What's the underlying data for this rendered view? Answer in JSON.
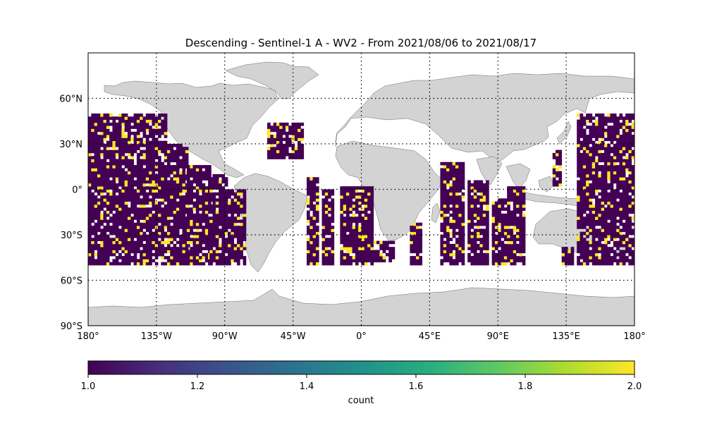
{
  "title": "Descending - Sentinel-1 A - WV2 - From 2021/08/06 to 2021/08/17",
  "map": {
    "projection": "PlateCarree",
    "lon_range": [
      -180,
      180
    ],
    "lat_range": [
      -90,
      90
    ],
    "gridlines": "dotted",
    "land_color": "#d3d3d3",
    "lon_ticks": [
      {
        "value": -180,
        "label": "180°"
      },
      {
        "value": -135,
        "label": "135°W"
      },
      {
        "value": -90,
        "label": "90°W"
      },
      {
        "value": -45,
        "label": "45°W"
      },
      {
        "value": 0,
        "label": "0°"
      },
      {
        "value": 45,
        "label": "45°E"
      },
      {
        "value": 90,
        "label": "90°E"
      },
      {
        "value": 135,
        "label": "135°E"
      },
      {
        "value": 180,
        "label": "180°"
      }
    ],
    "lat_ticks": [
      {
        "value": 60,
        "label": "60°N"
      },
      {
        "value": 30,
        "label": "30°N"
      },
      {
        "value": 0,
        "label": "0°"
      },
      {
        "value": -30,
        "label": "30°S"
      },
      {
        "value": -60,
        "label": "60°S"
      },
      {
        "value": -90,
        "label": "90°S"
      }
    ]
  },
  "chart_data": {
    "type": "heatmap",
    "cell_size_deg": 2,
    "lat_extent": [
      -50,
      50
    ],
    "value_range": [
      1,
      2
    ],
    "colormap": "viridis",
    "swaths": [
      {
        "lon": [
          -180,
          -128
        ],
        "lat": [
          -50,
          50
        ]
      },
      {
        "lon": [
          -128,
          -115
        ],
        "lat": [
          -50,
          30
        ]
      },
      {
        "lon": [
          -115,
          -100
        ],
        "lat": [
          -50,
          15
        ]
      },
      {
        "lon": [
          -100,
          -88
        ],
        "lat": [
          -50,
          10
        ]
      },
      {
        "lon": [
          -88,
          -76
        ],
        "lat": [
          -50,
          0
        ]
      },
      {
        "lon": [
          -62,
          -38
        ],
        "lat": [
          20,
          44
        ]
      },
      {
        "lon": [
          -36,
          -28
        ],
        "lat": [
          -50,
          8
        ]
      },
      {
        "lon": [
          -26,
          -18
        ],
        "lat": [
          -50,
          0
        ]
      },
      {
        "lon": [
          -14,
          8
        ],
        "lat": [
          -50,
          2
        ]
      },
      {
        "lon": [
          8,
          22
        ],
        "lat": [
          -48,
          -34
        ]
      },
      {
        "lon": [
          32,
          40
        ],
        "lat": [
          -50,
          -22
        ]
      },
      {
        "lon": [
          52,
          68
        ],
        "lat": [
          -50,
          18
        ]
      },
      {
        "lon": [
          70,
          84
        ],
        "lat": [
          -50,
          6
        ]
      },
      {
        "lon": [
          86,
          96
        ],
        "lat": [
          -50,
          -6
        ]
      },
      {
        "lon": [
          96,
          108
        ],
        "lat": [
          -50,
          2
        ]
      },
      {
        "lon": [
          132,
          140
        ],
        "lat": [
          -50,
          -38
        ]
      },
      {
        "lon": [
          126,
          132
        ],
        "lat": [
          2,
          25
        ]
      },
      {
        "lon": [
          142,
          180
        ],
        "lat": [
          -50,
          50
        ]
      }
    ],
    "colorbar": {
      "label": "count",
      "ticks": [
        "1.0",
        "1.2",
        "1.4",
        "1.6",
        "1.8",
        "2.0"
      ],
      "min": 1.0,
      "max": 2.0
    }
  }
}
